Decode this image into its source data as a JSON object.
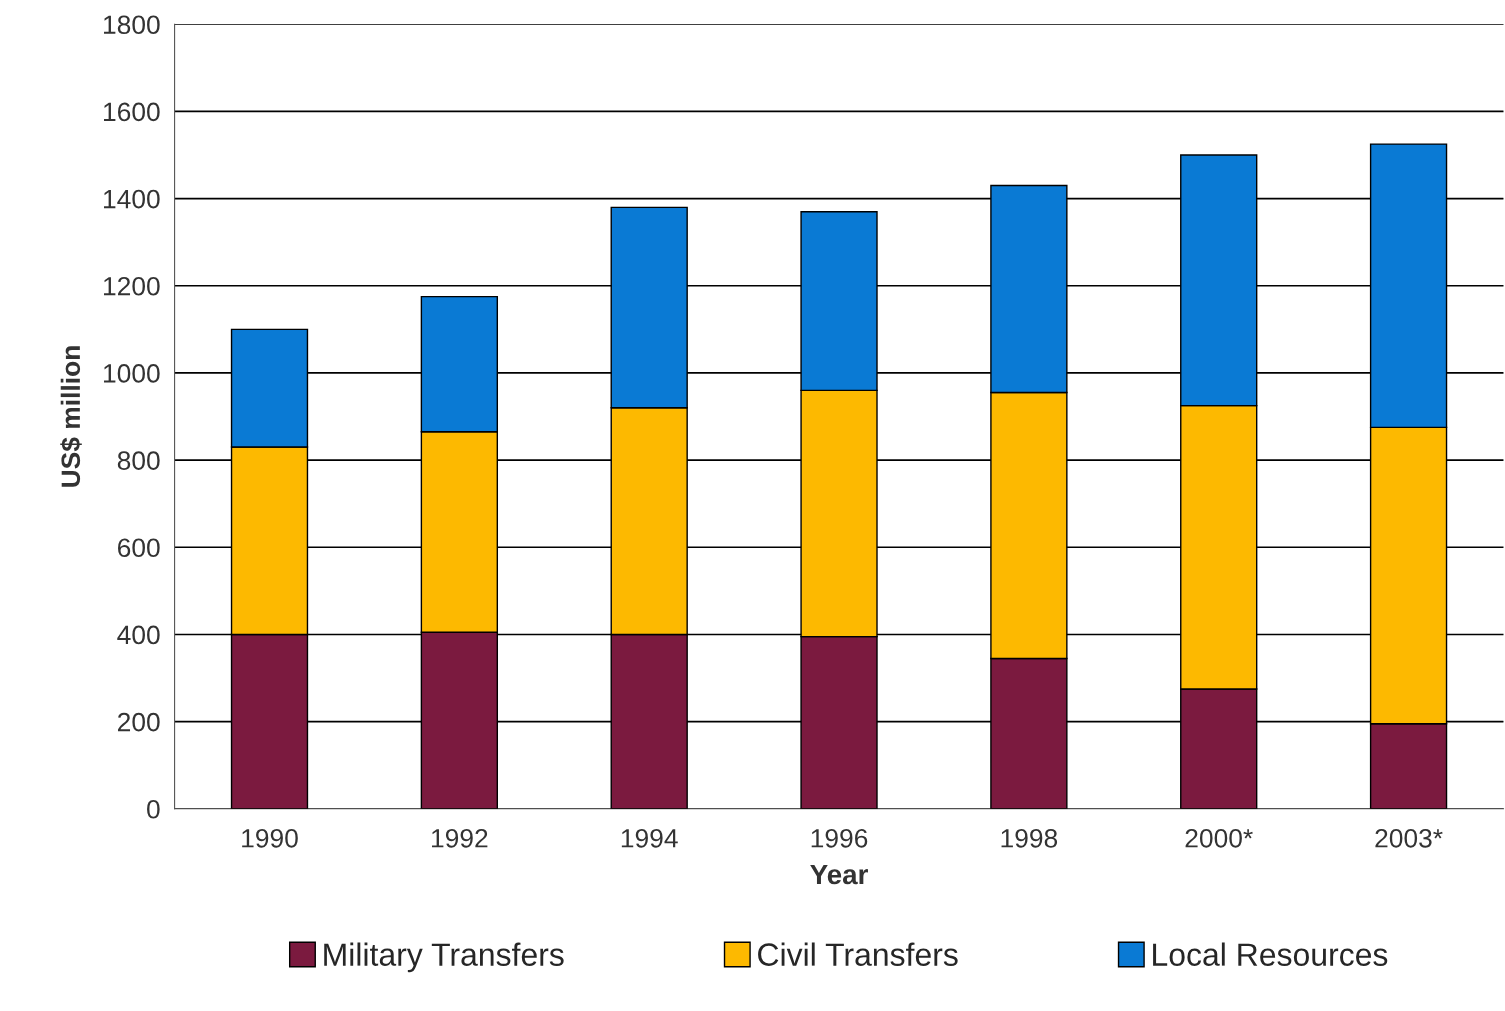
{
  "chart_data": {
    "type": "bar",
    "stacked": true,
    "xlabel": "Year",
    "ylabel": "US$ million",
    "categories": [
      "1990",
      "1992",
      "1994",
      "1996",
      "1998",
      "2000*",
      "2003*"
    ],
    "series": [
      {
        "name": "Military Transfers",
        "color": "#7b1a3f",
        "values": [
          400,
          405,
          400,
          395,
          345,
          275,
          195
        ]
      },
      {
        "name": "Civil Transfers",
        "color": "#fdb900",
        "values": [
          430,
          460,
          520,
          565,
          610,
          650,
          680
        ]
      },
      {
        "name": "Local Resources",
        "color": "#0a7ad4",
        "values": [
          270,
          310,
          460,
          410,
          475,
          575,
          650
        ]
      }
    ],
    "ylim": [
      0,
      1800
    ],
    "yticks": [
      0,
      200,
      400,
      600,
      800,
      1000,
      1200,
      1400,
      1600,
      1800
    ],
    "grid": "y",
    "legend": "bottom"
  }
}
